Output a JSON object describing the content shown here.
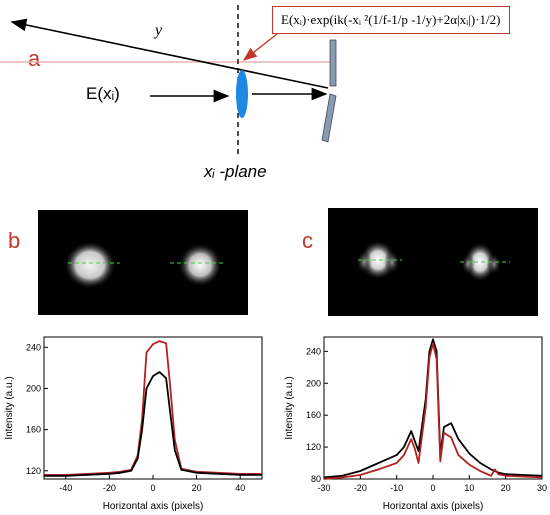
{
  "panel_a": {
    "letter": "a",
    "formula": "E(xᵢ)·exp(ik(-xᵢ ²(1/f-1/p -1/y)+2α|xᵢ|)·1/2)",
    "y_label": "y",
    "input_label": "E(xᵢ)",
    "plane_label": "xᵢ -plane",
    "colors": {
      "accent": "#c0392b",
      "lens": "#1e88e5",
      "mirror": "#8a9bb0"
    }
  },
  "panel_b": {
    "letter": "b"
  },
  "panel_c": {
    "letter": "c"
  },
  "chart_data": [
    {
      "type": "line",
      "xlabel": "Horizontal axis (pixels)",
      "ylabel": "Intensity (a.u.)",
      "xlim": [
        -50,
        50
      ],
      "ylim": [
        112,
        250
      ],
      "xticks": [
        -40,
        -20,
        0,
        20,
        40
      ],
      "yticks": [
        120,
        160,
        200,
        240
      ],
      "series": [
        {
          "color": "#b22222",
          "x": [
            -50,
            -40,
            -30,
            -20,
            -15,
            -10,
            -7,
            -5,
            -3,
            0,
            3,
            6,
            8,
            10,
            13,
            20,
            30,
            40,
            50
          ],
          "y": [
            116,
            116,
            117,
            118,
            119,
            121,
            135,
            170,
            235,
            243,
            246,
            244,
            200,
            150,
            122,
            119,
            118,
            117,
            117
          ]
        },
        {
          "color": "#000000",
          "x": [
            -50,
            -40,
            -30,
            -20,
            -15,
            -10,
            -7,
            -5,
            -3,
            0,
            3,
            6,
            8,
            10,
            13,
            20,
            30,
            40,
            50
          ],
          "y": [
            115,
            115,
            116,
            117,
            118,
            120,
            132,
            160,
            200,
            212,
            216,
            210,
            175,
            140,
            121,
            118,
            117,
            116,
            116
          ]
        }
      ]
    },
    {
      "type": "line",
      "xlabel": "Horizontal axis (pixels)",
      "ylabel": "Intensity (a.u.)",
      "xlim": [
        -30,
        30
      ],
      "ylim": [
        80,
        258
      ],
      "xticks": [
        -30,
        -20,
        -10,
        0,
        10,
        20,
        30
      ],
      "yticks": [
        80,
        120,
        160,
        200,
        240
      ],
      "series": [
        {
          "color": "#000000",
          "x": [
            -30,
            -25,
            -20,
            -15,
            -10,
            -8,
            -6,
            -4,
            -2,
            -1,
            0,
            1,
            2,
            3,
            5,
            7,
            10,
            13,
            16,
            18,
            20,
            25,
            30
          ],
          "y": [
            82,
            84,
            90,
            100,
            110,
            120,
            140,
            115,
            180,
            240,
            255,
            240,
            110,
            145,
            150,
            130,
            112,
            100,
            92,
            88,
            86,
            85,
            84
          ]
        },
        {
          "color": "#b22222",
          "x": [
            -30,
            -25,
            -20,
            -15,
            -10,
            -8,
            -6,
            -5,
            -4,
            -2,
            -1,
            0,
            1,
            2,
            3,
            5,
            7,
            10,
            13,
            16,
            17,
            18,
            20,
            25,
            30
          ],
          "y": [
            80,
            82,
            85,
            92,
            100,
            110,
            130,
            118,
            100,
            170,
            232,
            250,
            230,
            102,
            138,
            132,
            110,
            98,
            90,
            84,
            92,
            86,
            84,
            83,
            82
          ]
        }
      ]
    }
  ]
}
